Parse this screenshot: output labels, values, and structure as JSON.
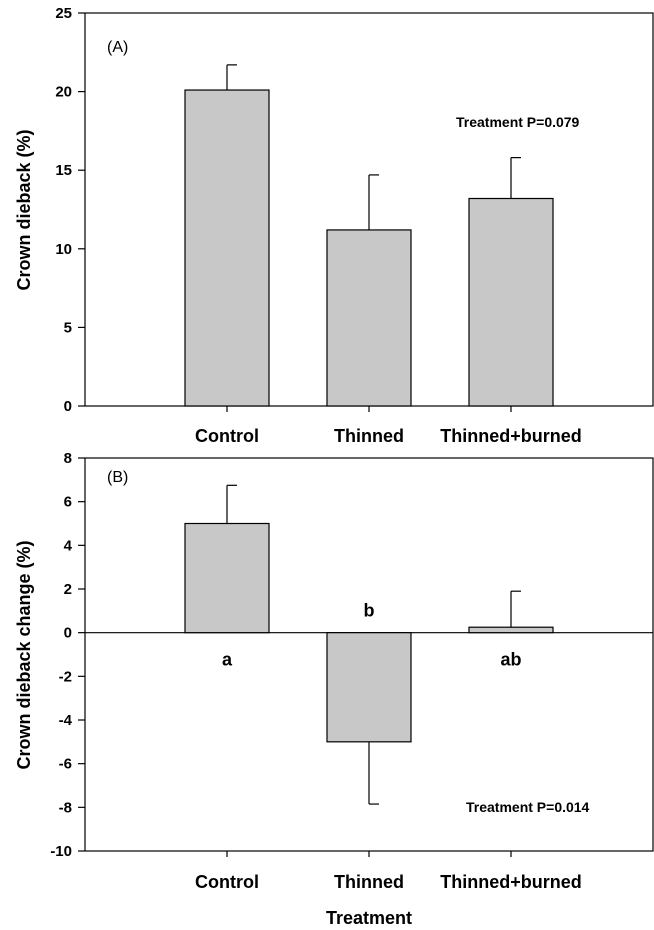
{
  "chart_data": [
    {
      "type": "bar",
      "panel_label": "(A)",
      "categories": [
        "Control",
        "Thinned",
        "Thinned+burned"
      ],
      "values": [
        20.1,
        11.2,
        13.2
      ],
      "error_bars": [
        1.6,
        3.5,
        2.6
      ],
      "ylabel": "Crown dieback (%)",
      "xlabel": "",
      "ylim": [
        0,
        25
      ],
      "yticks": [
        "0",
        "5",
        "10",
        "15",
        "20",
        "25"
      ],
      "annotation": "Treatment P=0.079",
      "bar_color": "#c8c8c8",
      "grid": false
    },
    {
      "type": "bar",
      "panel_label": "(B)",
      "categories": [
        "Control",
        "Thinned",
        "Thinned+burned"
      ],
      "values": [
        5.0,
        -5.0,
        0.25
      ],
      "error_bars": [
        1.75,
        2.85,
        1.65
      ],
      "significance_letters": [
        "a",
        "b",
        "ab"
      ],
      "ylabel": "Crown dieback change (%)",
      "xlabel": "Treatment",
      "ylim": [
        -10,
        8
      ],
      "yticks": [
        "-10",
        "-8",
        "-6",
        "-4",
        "-2",
        "0",
        "2",
        "4",
        "6",
        "8"
      ],
      "annotation": "Treatment P=0.014",
      "bar_color": "#c8c8c8",
      "grid": false
    }
  ]
}
